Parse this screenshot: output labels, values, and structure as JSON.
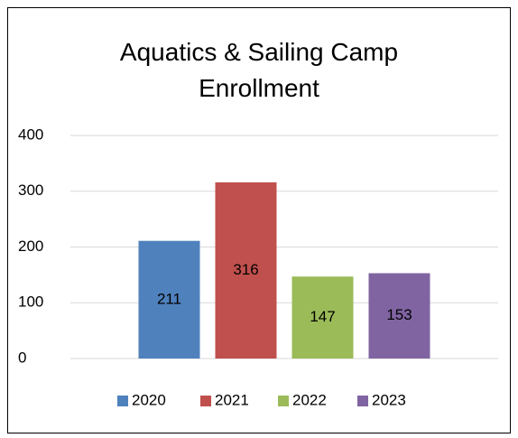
{
  "chart_data": {
    "type": "bar",
    "title": "Aquatics & Sailing Camp Enrollment",
    "categories": [
      null
    ],
    "series": [
      {
        "name": "2020",
        "color": "#4f81bd",
        "values": [
          211
        ]
      },
      {
        "name": "2021",
        "color": "#c0504d",
        "values": [
          316
        ]
      },
      {
        "name": "2022",
        "color": "#9bbb59",
        "values": [
          147
        ]
      },
      {
        "name": "2023",
        "color": "#8064a2",
        "values": [
          153
        ]
      }
    ],
    "ylim": [
      0,
      400
    ],
    "yticks": [
      0,
      100,
      200,
      300,
      400
    ],
    "grid": true,
    "legend": "bottom"
  }
}
